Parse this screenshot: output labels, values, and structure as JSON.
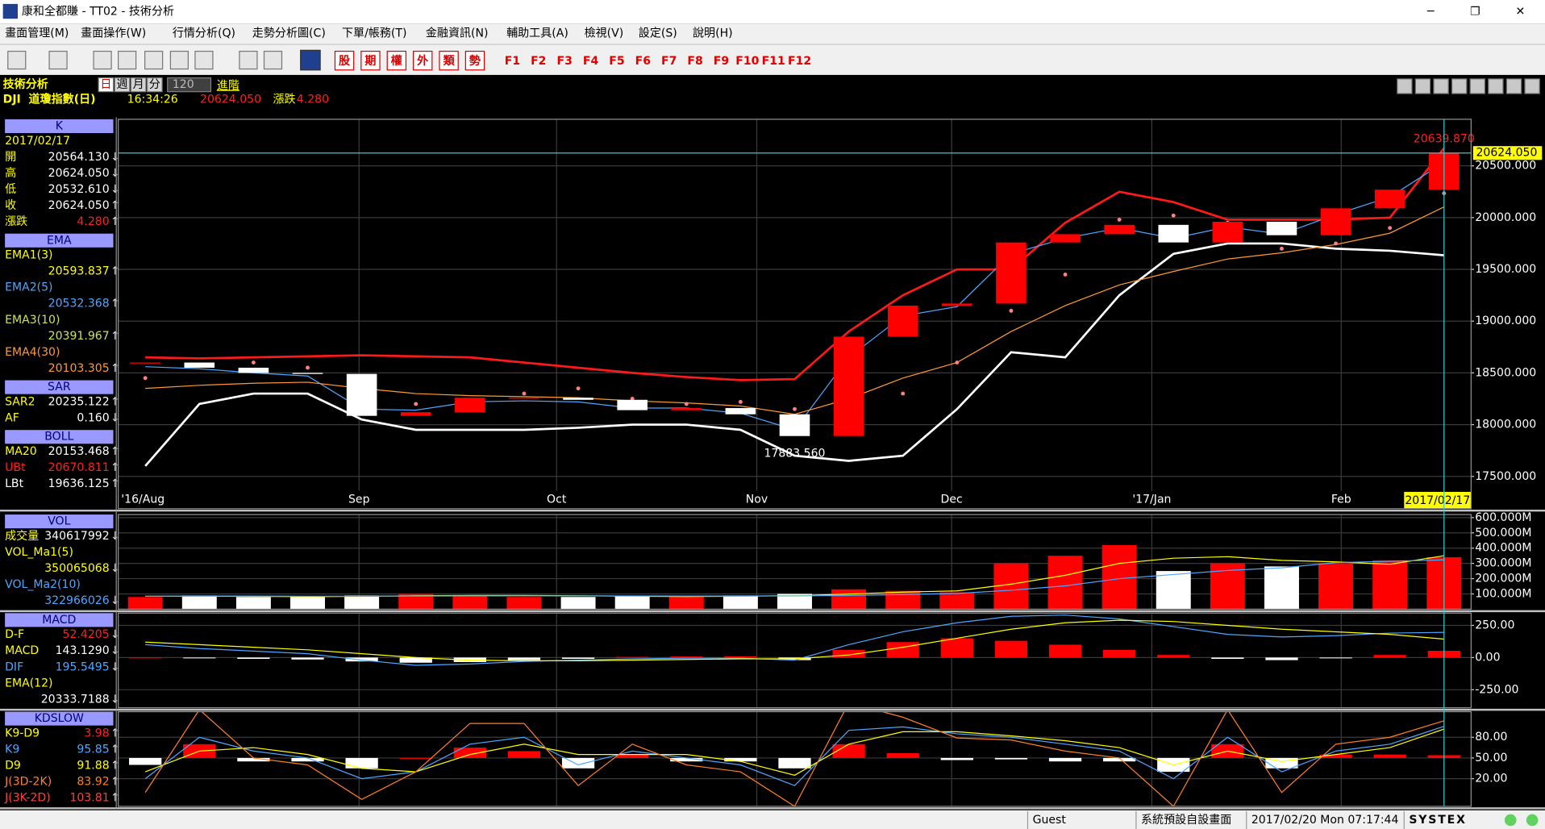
{
  "window": {
    "title": "康和全都賺 - TT02 - 技術分析",
    "buttons": [
      "─",
      "❐",
      "✕"
    ]
  },
  "menu": [
    "畫面管理(M)",
    "畫面操作(W)",
    "行情分析(Q)",
    "走勢分析圖(C)",
    "下單/帳務(T)",
    "金融資訊(N)",
    "輔助工具(A)",
    "檢視(V)",
    "設定(S)",
    "說明(H)"
  ],
  "toolbar": {
    "markets": [
      "股",
      "期",
      "權",
      "外",
      "類",
      "勢"
    ],
    "function_keys": [
      "F1",
      "F2",
      "F3",
      "F4",
      "F5",
      "F6",
      "F7",
      "F8",
      "F9",
      "F10",
      "F11",
      "F12"
    ]
  },
  "header": {
    "title": "技術分析",
    "periods": [
      "日",
      "週",
      "月",
      "分"
    ],
    "count": "120",
    "advanced": "進階",
    "symbol": "DJI  道瓊指數(日)",
    "time": "16:34:26",
    "price": "20624.050",
    "change_label": "漲跌",
    "change": "4.280"
  },
  "chart_data": [
    {
      "type": "candlestick",
      "up_color": "#ff0000",
      "down_color": "#ffffff",
      "values": [
        18600,
        18550,
        18500,
        18490,
        18085,
        18120,
        18260,
        18260,
        18240,
        18140,
        18160,
        18100,
        17890,
        18850,
        19150,
        19170,
        19760,
        19840,
        19930,
        19760,
        19960,
        19830,
        20090,
        20270,
        20624.05
      ],
      "series": [
        {
          "style": "band",
          "color": "#ff1a1a",
          "values": [
            18650,
            18640,
            18650,
            18660,
            18670,
            18660,
            18650,
            18600,
            18550,
            18500,
            18460,
            18430,
            18440,
            18900,
            19250,
            19500,
            19500,
            19950,
            20250,
            20150,
            19980,
            19980,
            19980,
            20000,
            20670.811
          ]
        },
        {
          "style": "band",
          "color": "#ffffff",
          "values": [
            17600,
            18200,
            18300,
            18300,
            18050,
            17950,
            17950,
            17950,
            17970,
            18000,
            18000,
            17950,
            17700,
            17650,
            17700,
            18150,
            18700,
            18650,
            19250,
            19650,
            19750,
            19750,
            19700,
            19680,
            19636.125
          ]
        },
        {
          "style": "line",
          "color": "#4da6ff",
          "values": [
            18560,
            18540,
            18500,
            18470,
            18150,
            18140,
            18220,
            18230,
            18220,
            18160,
            18160,
            18110,
            17950,
            18650,
            19050,
            19140,
            19650,
            19800,
            19900,
            19800,
            19910,
            19840,
            20030,
            20200,
            20532.368
          ]
        },
        {
          "style": "line",
          "color": "#ff9933",
          "values": [
            18350,
            18380,
            18400,
            18410,
            18350,
            18300,
            18280,
            18270,
            18260,
            18230,
            18210,
            18180,
            18100,
            18250,
            18450,
            18600,
            18900,
            19150,
            19350,
            19480,
            19600,
            19660,
            19740,
            19850,
            20103.305
          ]
        },
        {
          "style": "dots",
          "color": "#ff8080",
          "values": [
            18450,
            18580,
            18600,
            18550,
            18350,
            18200,
            18150,
            18300,
            18350,
            18250,
            18200,
            18220,
            18150,
            17950,
            18300,
            18600,
            19100,
            19450,
            19980,
            20020,
            19950,
            19700,
            19750,
            19900,
            20235.122
          ]
        }
      ],
      "xlim": [
        0,
        25
      ],
      "xticks": [
        {
          "value": 0,
          "label": "'16/Aug"
        },
        {
          "value": 4.45,
          "label": "Sep"
        },
        {
          "value": 8.1,
          "label": "Oct"
        },
        {
          "value": 11.8,
          "label": "Nov"
        },
        {
          "value": 15.4,
          "label": "Dec"
        },
        {
          "value": 19.1,
          "label": "'17/Jan"
        },
        {
          "value": 22.6,
          "label": "Feb"
        }
      ],
      "ylim": [
        17360,
        20950
      ],
      "yticks": [
        {
          "value": 17500,
          "label": "17500.000"
        },
        {
          "value": 18000,
          "label": "18000.000"
        },
        {
          "value": 18500,
          "label": "18500.000"
        },
        {
          "value": 19000,
          "label": "19000.000"
        },
        {
          "value": 19500,
          "label": "19500.000"
        },
        {
          "value": 20000,
          "label": "20000.000"
        },
        {
          "value": 20500,
          "label": "20500.000"
        }
      ],
      "high_label": "20639.870",
      "low_label": "17883.560",
      "last_label": "20624.050",
      "date_label": "2017/02/17",
      "info": [
        {
          "title": "K",
          "rows": [
            {
              "label": "2017/02/17",
              "color": "#ffff00"
            },
            {
              "label": "開",
              "value": "20564.130",
              "arrow": "↓",
              "color": "#ffff00",
              "value_color": "#ffffff"
            },
            {
              "label": "高",
              "value": "20624.050",
              "arrow": "↓",
              "color": "#ffff00",
              "value_color": "#ffffff"
            },
            {
              "label": "低",
              "value": "20532.610",
              "arrow": "↓",
              "color": "#ffff00",
              "value_color": "#ffffff"
            },
            {
              "label": "收",
              "value": "20624.050",
              "arrow": "↑",
              "color": "#ffff00",
              "value_color": "#ffffff"
            },
            {
              "label": "漲跌",
              "value": "4.280",
              "arrow": "↑",
              "color": "#ffff00",
              "value_color": "#ff2020"
            }
          ]
        },
        {
          "title": "EMA",
          "rows": [
            {
              "label": "EMA1(3)",
              "value": "20593.837",
              "arrow": "↑",
              "color": "#ffff00"
            },
            {
              "label": "EMA2(5)",
              "value": "20532.368",
              "arrow": "↑",
              "color": "#4da6ff"
            },
            {
              "label": "EMA3(10)",
              "value": "20391.967",
              "arrow": "↑",
              "color": "#c8e650"
            },
            {
              "label": "EMA4(30)",
              "value": "20103.305",
              "arrow": "↑",
              "color": "#ff9933"
            }
          ]
        },
        {
          "title": "SAR",
          "rows": [
            {
              "label": "SAR2",
              "value": "20235.122",
              "arrow": "↑",
              "color": "#ffff00",
              "value_color": "#ffffff"
            },
            {
              "label": "AF",
              "value": "0.160",
              "arrow": "↓",
              "color": "#ffff00",
              "value_color": "#ffffff"
            }
          ]
        },
        {
          "title": "BOLL",
          "rows": [
            {
              "label": "MA20",
              "value": "20153.468",
              "arrow": "↑",
              "color": "#ffff00",
              "value_color": "#ffffff"
            },
            {
              "label": "UBt",
              "value": "20670.811",
              "arrow": "↑",
              "color": "#ff2020"
            },
            {
              "label": "LBt",
              "value": "19636.125",
              "arrow": "↑",
              "color": "#ffffff"
            }
          ]
        }
      ]
    },
    {
      "type": "bar",
      "up_color": "#ff0000",
      "down_color": "#ffffff",
      "values": [
        80,
        90,
        80,
        80,
        90,
        100,
        90,
        80,
        80,
        85,
        80,
        90,
        100,
        130,
        120,
        110,
        300,
        350,
        420,
        250,
        300,
        280,
        300,
        320,
        340.617992
      ],
      "series": [
        {
          "style": "line",
          "color": "#ffff00",
          "values": [
            85,
            85,
            84,
            82,
            84,
            88,
            90,
            90,
            88,
            85,
            83,
            85,
            89,
            99,
            112,
            120,
            164,
            222,
            300,
            334,
            344,
            320,
            310,
            294,
            350.065068
          ]
        },
        {
          "style": "line",
          "color": "#4da6ff",
          "values": [
            85,
            86,
            86,
            85,
            85,
            86,
            87,
            87,
            87,
            87,
            86,
            86,
            87,
            90,
            96,
            103,
            124,
            153,
            200,
            227,
            254,
            271,
            305,
            314,
            322.966026
          ]
        }
      ],
      "ylim": [
        0,
        620
      ],
      "yticks": [
        {
          "value": 100,
          "label": "100.000M"
        },
        {
          "value": 200,
          "label": "200.000M"
        },
        {
          "value": 300,
          "label": "300.000M"
        },
        {
          "value": 400,
          "label": "400.000M"
        },
        {
          "value": 500,
          "label": "500.000M"
        },
        {
          "value": 600,
          "label": "600.000M"
        }
      ],
      "info": [
        {
          "title": "VOL",
          "rows": [
            {
              "label": "成交量",
              "value": "340617992",
              "arrow": "↓",
              "color": "#ffff00",
              "value_color": "#ffffff"
            },
            {
              "label": "VOL_Ma1(5)",
              "value": "350065068",
              "arrow": "↓",
              "color": "#ffff00"
            },
            {
              "label": "VOL_Ma2(10)",
              "value": "322966026",
              "arrow": "↓",
              "color": "#4da6ff"
            }
          ]
        }
      ]
    },
    {
      "type": "macd",
      "up_color": "#ff0000",
      "down_color": "#ffffff",
      "values": [
        0,
        -5,
        -10,
        -15,
        -30,
        -40,
        -35,
        -20,
        -10,
        5,
        8,
        10,
        -20,
        60,
        120,
        150,
        130,
        100,
        60,
        20,
        -10,
        -20,
        -5,
        20,
        52.4205
      ],
      "series": [
        {
          "style": "line",
          "color": "#4da6ff",
          "values": [
            100,
            70,
            50,
            30,
            -20,
            -60,
            -50,
            -30,
            -20,
            -10,
            -5,
            -5,
            -20,
            100,
            200,
            270,
            320,
            330,
            300,
            240,
            180,
            160,
            170,
            190,
            195.5495
          ]
        },
        {
          "style": "line",
          "color": "#ffff00",
          "values": [
            120,
            100,
            80,
            60,
            30,
            0,
            -20,
            -25,
            -25,
            -20,
            -15,
            -10,
            -10,
            20,
            80,
            150,
            220,
            270,
            290,
            280,
            250,
            220,
            200,
            180,
            143.129
          ]
        }
      ],
      "ylim": [
        -390,
        345
      ],
      "yticks": [
        {
          "value": -250,
          "label": "-250.00"
        },
        {
          "value": 0,
          "label": "0.00"
        },
        {
          "value": 250,
          "label": "250.00"
        }
      ],
      "info": [
        {
          "title": "MACD",
          "rows": [
            {
              "label": "D-F",
              "value": "52.4205",
              "arrow": "↓",
              "color": "#ffff00",
              "value_color": "#ff2020"
            },
            {
              "label": "MACD",
              "value": "143.1290",
              "arrow": "↓",
              "color": "#ffff00",
              "value_color": "#ffffff"
            },
            {
              "label": "DIF",
              "value": "195.5495",
              "arrow": "↓",
              "color": "#4da6ff"
            },
            {
              "label": "EMA(12)",
              "value": "20333.7188",
              "arrow": "↓",
              "color": "#ffff00",
              "value_color": "#ffffff"
            }
          ]
        }
      ]
    },
    {
      "type": "kd",
      "up_color": "#ff0000",
      "down_color": "#ffffff",
      "values": [
        -10,
        20,
        -5,
        -5,
        -15,
        0,
        15,
        10,
        -15,
        5,
        -5,
        -5,
        -15,
        20,
        7,
        -3,
        -2,
        -5,
        -5,
        -20,
        20,
        -15,
        5,
        5,
        3.98
      ],
      "y2lim": [
        -70,
        67
      ],
      "series": [
        {
          "style": "line",
          "color": "#4da6ff",
          "values": [
            20,
            80,
            60,
            50,
            20,
            30,
            70,
            80,
            40,
            60,
            50,
            40,
            10,
            90,
            95,
            85,
            80,
            70,
            60,
            20,
            80,
            30,
            60,
            70,
            95.85
          ]
        },
        {
          "style": "line",
          "color": "#ffff00",
          "values": [
            30,
            60,
            65,
            55,
            35,
            30,
            55,
            70,
            55,
            55,
            55,
            45,
            25,
            70,
            88,
            88,
            82,
            75,
            65,
            40,
            60,
            45,
            55,
            65,
            91.88
          ]
        },
        {
          "style": "line",
          "color": "#ff7f27",
          "values": [
            0,
            120,
            50,
            40,
            -10,
            30,
            100,
            100,
            10,
            70,
            40,
            30,
            -20,
            130,
            109,
            79,
            76,
            60,
            50,
            -20,
            120,
            0,
            70,
            80,
            103.81
          ]
        }
      ],
      "ylim": [
        -20,
        117
      ],
      "yticks": [
        {
          "value": 20,
          "label": "20.00"
        },
        {
          "value": 50,
          "label": "50.00"
        },
        {
          "value": 80,
          "label": "80.00"
        }
      ],
      "info": [
        {
          "title": "KDSLOW",
          "rows": [
            {
              "label": "K9-D9",
              "value": "3.98",
              "arrow": "↑",
              "color": "#ffff00",
              "value_color": "#ff2020"
            },
            {
              "label": "K9",
              "value": "95.85",
              "arrow": "↑",
              "color": "#4da6ff"
            },
            {
              "label": "D9",
              "value": "91.88",
              "arrow": "↑",
              "color": "#ffff00"
            },
            {
              "label": "J(3D-2K)",
              "value": "83.92",
              "arrow": "↑",
              "color": "#ff7f27"
            },
            {
              "label": "J(3K-2D)",
              "value": "103.81",
              "arrow": "↑",
              "color": "#ff4040"
            }
          ]
        }
      ]
    }
  ],
  "status": {
    "user": "Guest",
    "layout": "系統預設自設畫面",
    "datetime": "2017/02/20 Mon 07:17:44",
    "brand": "SYSTEX"
  }
}
